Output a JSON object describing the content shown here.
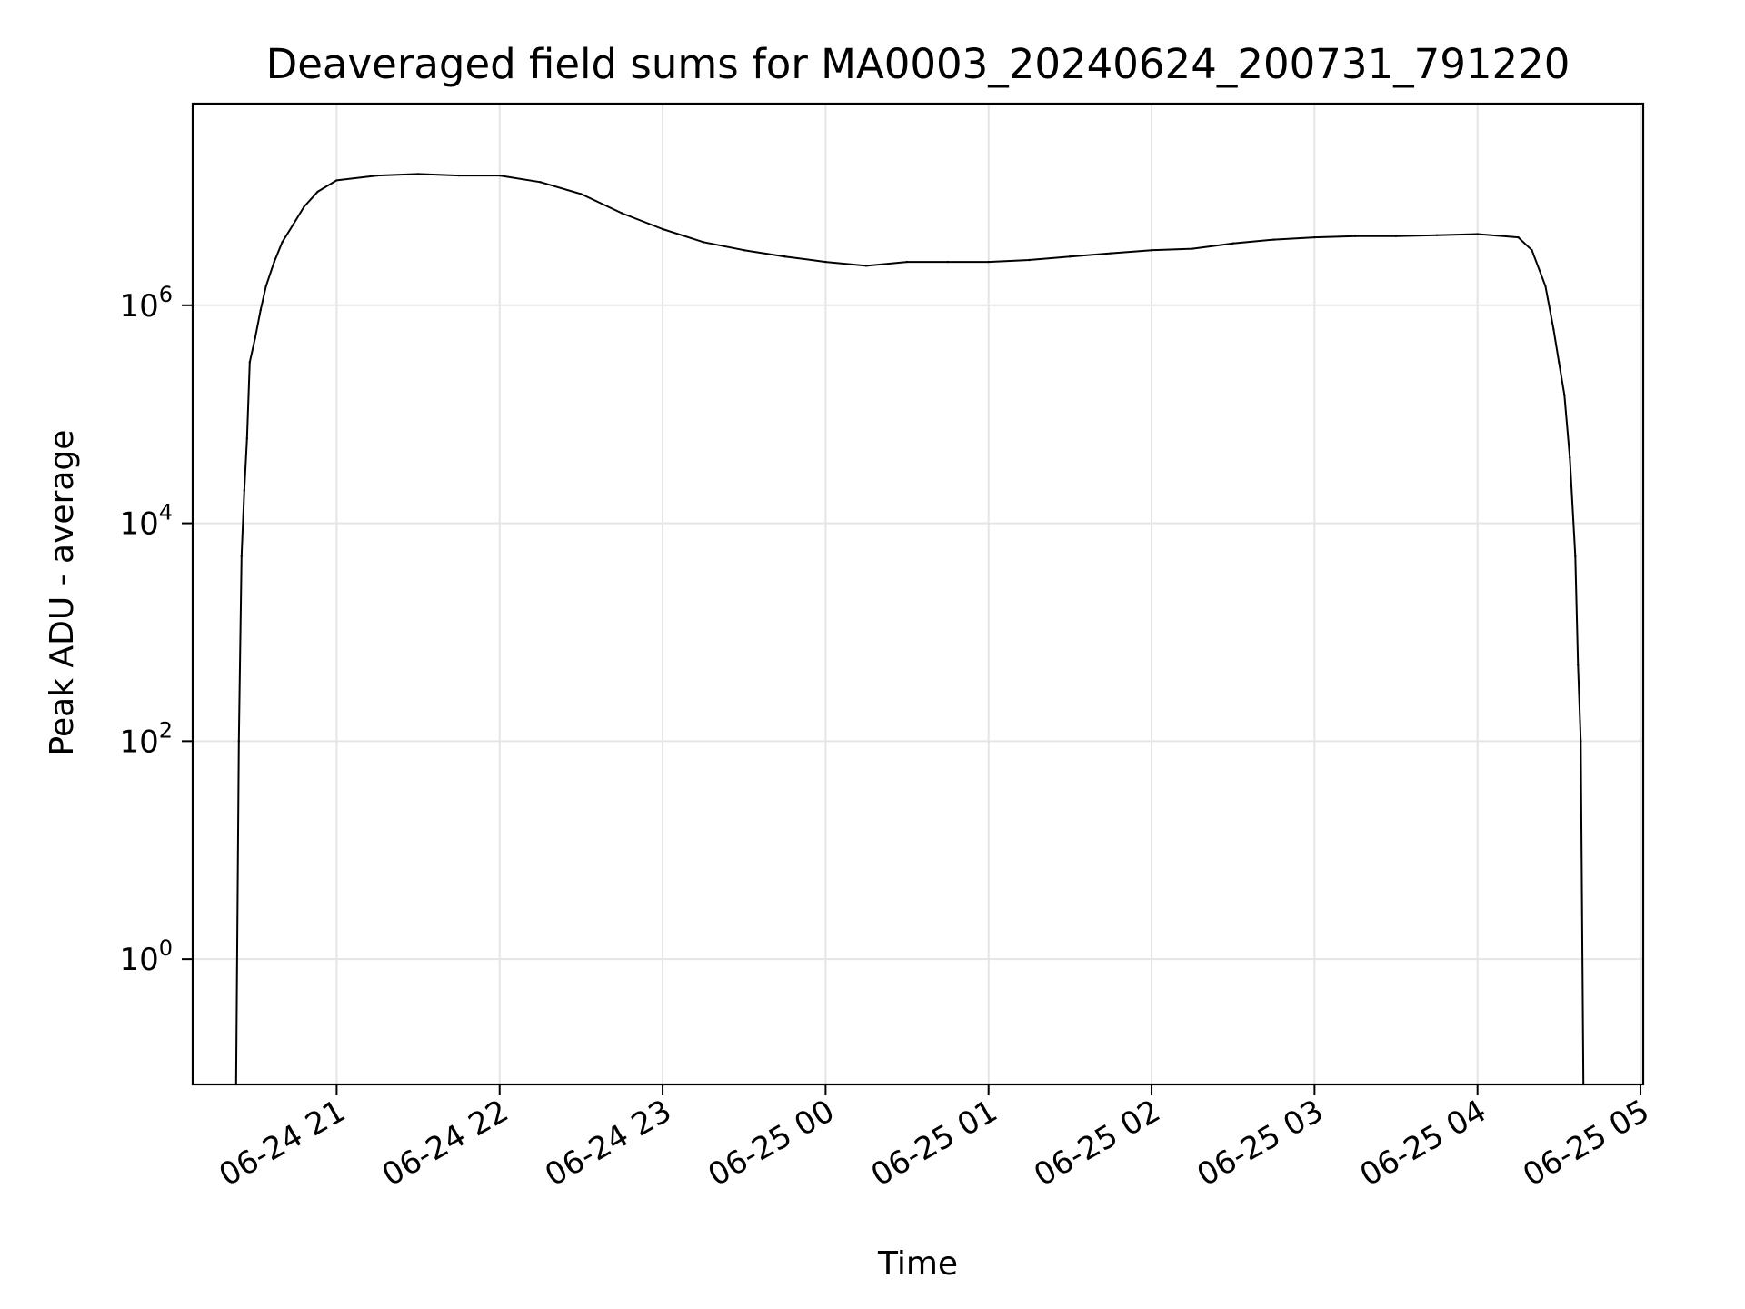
{
  "chart_data": {
    "type": "line",
    "title": "Deaveraged field sums for MA0003_20240624_200731_791220",
    "xlabel": "Time",
    "ylabel": "Peak ADU - average",
    "yscale": "log",
    "grid": true,
    "line_color": "#000000",
    "grid_color": "#e5e5e5",
    "xlim": [
      "06-24 20:07",
      "06-25 05:01"
    ],
    "ylim_log10": [
      -1.15,
      7.85
    ],
    "x_ticks": [
      {
        "value": "06-24 21:00",
        "label": "06-24 21"
      },
      {
        "value": "06-24 22:00",
        "label": "06-24 22"
      },
      {
        "value": "06-24 23:00",
        "label": "06-24 23"
      },
      {
        "value": "06-25 00:00",
        "label": "06-25 00"
      },
      {
        "value": "06-25 01:00",
        "label": "06-25 01"
      },
      {
        "value": "06-25 02:00",
        "label": "06-25 02"
      },
      {
        "value": "06-25 03:00",
        "label": "06-25 03"
      },
      {
        "value": "06-25 04:00",
        "label": "06-25 04"
      },
      {
        "value": "06-25 05:00",
        "label": "06-25 05"
      }
    ],
    "y_ticks": [
      {
        "exp": 0,
        "base": "10",
        "sup": "0"
      },
      {
        "exp": 2,
        "base": "10",
        "sup": "2"
      },
      {
        "exp": 4,
        "base": "10",
        "sup": "4"
      },
      {
        "exp": 6,
        "base": "10",
        "sup": "6"
      }
    ],
    "series": [
      {
        "points": [
          [
            "06-24 20:23",
            0.01
          ],
          [
            "06-24 20:24",
            100
          ],
          [
            "06-24 20:25",
            5000
          ],
          [
            "06-24 20:26",
            20000
          ],
          [
            "06-24 20:27",
            60000
          ],
          [
            "06-24 20:28",
            300000
          ],
          [
            "06-24 20:30",
            500000
          ],
          [
            "06-24 20:32",
            900000
          ],
          [
            "06-24 20:34",
            1500000
          ],
          [
            "06-24 20:37",
            2500000
          ],
          [
            "06-24 20:40",
            3800000
          ],
          [
            "06-24 20:44",
            5500000
          ],
          [
            "06-24 20:48",
            8000000
          ],
          [
            "06-24 20:53",
            11000000
          ],
          [
            "06-24 21:00",
            14000000
          ],
          [
            "06-24 21:15",
            15500000
          ],
          [
            "06-24 21:30",
            16000000
          ],
          [
            "06-24 21:45",
            15500000
          ],
          [
            "06-24 22:00",
            15500000
          ],
          [
            "06-24 22:15",
            13500000
          ],
          [
            "06-24 22:30",
            10500000
          ],
          [
            "06-24 22:45",
            7000000
          ],
          [
            "06-24 23:00",
            5000000
          ],
          [
            "06-24 23:15",
            3800000
          ],
          [
            "06-24 23:30",
            3200000
          ],
          [
            "06-24 23:45",
            2800000
          ],
          [
            "06-25 00:00",
            2500000
          ],
          [
            "06-25 00:15",
            2300000
          ],
          [
            "06-25 00:30",
            2500000
          ],
          [
            "06-25 00:45",
            2500000
          ],
          [
            "06-25 01:00",
            2500000
          ],
          [
            "06-25 01:15",
            2600000
          ],
          [
            "06-25 01:30",
            2800000
          ],
          [
            "06-25 01:45",
            3000000
          ],
          [
            "06-25 02:00",
            3200000
          ],
          [
            "06-25 02:15",
            3300000
          ],
          [
            "06-25 02:30",
            3700000
          ],
          [
            "06-25 02:45",
            4000000
          ],
          [
            "06-25 03:00",
            4200000
          ],
          [
            "06-25 03:15",
            4300000
          ],
          [
            "06-25 03:30",
            4300000
          ],
          [
            "06-25 03:45",
            4400000
          ],
          [
            "06-25 04:00",
            4500000
          ],
          [
            "06-25 04:15",
            4200000
          ],
          [
            "06-25 04:20",
            3200000
          ],
          [
            "06-25 04:25",
            1500000
          ],
          [
            "06-25 04:28",
            600000
          ],
          [
            "06-25 04:30",
            300000
          ],
          [
            "06-25 04:32",
            150000
          ],
          [
            "06-25 04:34",
            40000
          ],
          [
            "06-25 04:36",
            5000
          ],
          [
            "06-25 04:37",
            500
          ],
          [
            "06-25 04:38",
            100
          ],
          [
            "06-25 04:39",
            0.01
          ]
        ]
      }
    ]
  }
}
